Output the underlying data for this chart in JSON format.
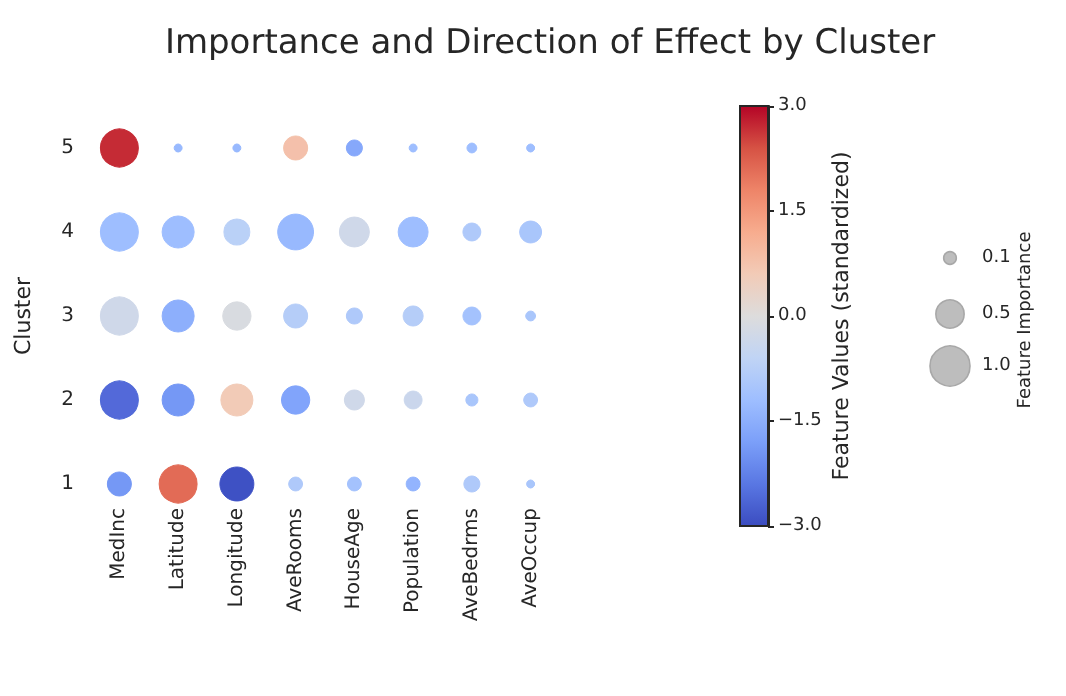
{
  "chart_data": {
    "type": "bubble",
    "title": "Importance and Direction of Effect by Cluster",
    "ylabel": "Cluster",
    "clabel": "Feature Values (standardized)",
    "legend_title": "Feature Importance",
    "categories": [
      "MedInc",
      "Latitude",
      "Longitude",
      "AveRooms",
      "HouseAge",
      "Population",
      "AveBedrms",
      "AveOccup"
    ],
    "ylim": [
      1,
      5
    ],
    "yticks": [
      1,
      2,
      3,
      4,
      5
    ],
    "grid": false,
    "clim": [
      -3,
      3
    ],
    "cticks": [
      {
        "value": -3,
        "label": "−3.0"
      },
      {
        "value": -1.5,
        "label": "−1.5"
      },
      {
        "value": 0,
        "label": "0.0"
      },
      {
        "value": 1.5,
        "label": "1.5"
      },
      {
        "value": 3,
        "label": "3.0"
      }
    ],
    "size_legend": [
      {
        "value": 0.1,
        "label": "0.1"
      },
      {
        "value": 0.5,
        "label": "0.5"
      },
      {
        "value": 1,
        "label": "1.0"
      }
    ],
    "series": [
      {
        "values": [
          1,
          1,
          1,
          1,
          1,
          1,
          1,
          1
        ],
        "sizes": [
          0.36,
          0.9,
          0.72,
          0.12,
          0.12,
          0.12,
          0.16,
          0.04
        ],
        "cvalues": [
          -1.9,
          2.1,
          -2.9,
          -0.9,
          -1.1,
          -1.4,
          -0.9,
          -1.0
        ],
        "colors": [
          "#7598f5",
          "#e26b56",
          "#3e51c4",
          "#afc9fa",
          "#a4c2fd",
          "#93b4fe",
          "#afc9fa",
          "#a9c6fb"
        ]
      },
      {
        "values": [
          2,
          2,
          2,
          2,
          2,
          2,
          2,
          2
        ],
        "sizes": [
          0.9,
          0.64,
          0.64,
          0.5,
          0.25,
          0.2,
          0.09,
          0.12
        ],
        "cvalues": [
          -2.6,
          -1.9,
          0.6,
          -1.7,
          -0.3,
          -0.4,
          -1.0,
          -0.9
        ],
        "colors": [
          "#5369d9",
          "#7598f5",
          "#f2cbb7",
          "#81a4fb",
          "#cfd8e9",
          "#cad6ec",
          "#a9c6fb",
          "#afc9fa"
        ]
      },
      {
        "values": [
          3,
          3,
          3,
          3,
          3,
          3,
          3,
          3
        ],
        "sizes": [
          0.9,
          0.64,
          0.5,
          0.36,
          0.16,
          0.25,
          0.2,
          0.06
        ],
        "cvalues": [
          -0.3,
          -1.5,
          -0.1,
          -0.8,
          -0.9,
          -0.8,
          -1.1,
          -1.0
        ],
        "colors": [
          "#cfd8e9",
          "#8daffc",
          "#d8dbe0",
          "#b5cdf8",
          "#afc9fa",
          "#b5cdf8",
          "#a4c2fd",
          "#a9c6fb"
        ]
      },
      {
        "values": [
          4,
          4,
          4,
          4,
          4,
          4,
          4,
          4
        ],
        "sizes": [
          0.9,
          0.64,
          0.42,
          0.8,
          0.56,
          0.56,
          0.2,
          0.3
        ],
        "cvalues": [
          -1.2,
          -1.2,
          -0.7,
          -1.3,
          -0.3,
          -1.2,
          -0.9,
          -1.0
        ],
        "colors": [
          "#9ebeff",
          "#9ebeff",
          "#bad1f7",
          "#98b9fe",
          "#cfd8e9",
          "#9ebeff",
          "#afc9fa",
          "#a9c6fb"
        ]
      },
      {
        "values": [
          5,
          5,
          5,
          5,
          5,
          5,
          5,
          5
        ],
        "sizes": [
          0.9,
          0.04,
          0.04,
          0.36,
          0.16,
          0.04,
          0.06,
          0.04
        ],
        "cvalues": [
          2.7,
          -1.3,
          -1.3,
          0.8,
          -1.6,
          -1.2,
          -1.2,
          -1.2
        ],
        "colors": [
          "#c52b35",
          "#98b9fe",
          "#98b9fe",
          "#f4c0ab",
          "#86a8fb",
          "#9ebeff",
          "#9ebeff",
          "#9ebeff"
        ]
      }
    ]
  }
}
